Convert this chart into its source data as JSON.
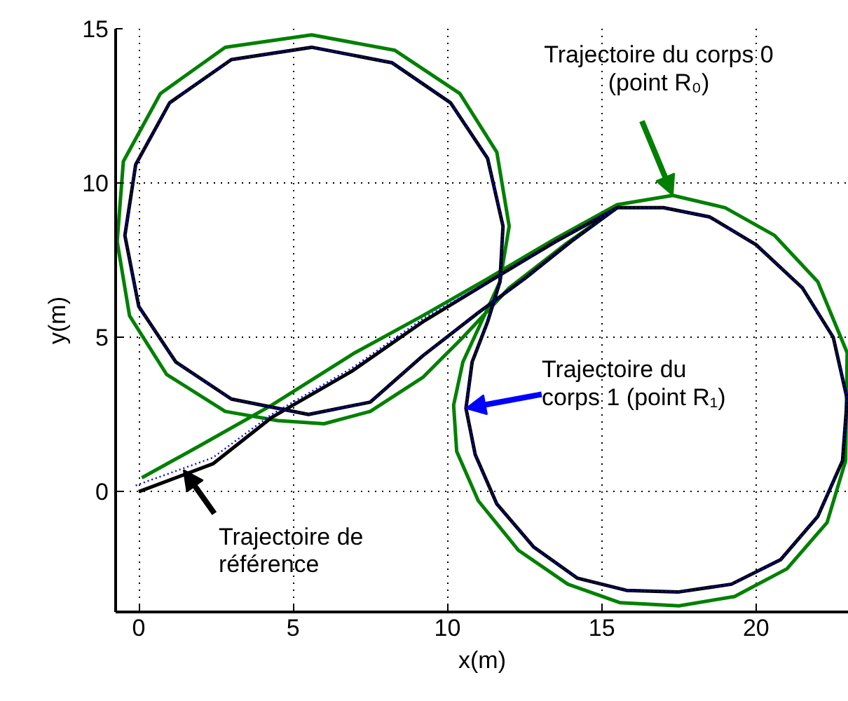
{
  "chart_data": {
    "type": "line",
    "xlabel": "x(m)",
    "ylabel": "y(m)",
    "xlim": [
      -0.75,
      23
    ],
    "ylim": [
      -3.9,
      15
    ],
    "xticks": [
      0,
      5,
      10,
      15,
      20
    ],
    "yticks": [
      0,
      5,
      10,
      15
    ],
    "grid": true,
    "series": [
      {
        "color": "#000000",
        "line_style": "solid",
        "x": [
          0,
          2.4,
          4.3,
          6.9,
          9.2,
          11.5,
          13.5,
          15.5,
          17,
          18.5,
          20,
          21.5,
          22.5,
          22.95,
          22.8,
          22,
          20.8,
          19.2,
          17.5,
          15.8,
          14.2,
          12.8,
          11.6,
          10.9,
          10.6,
          10.8,
          11.3,
          11.7,
          11.8,
          11.3,
          10.1,
          8.2,
          5.6,
          3,
          1,
          -0.1,
          -0.45,
          0,
          1.2,
          3,
          5.5,
          7.5,
          9.2,
          11,
          12.5,
          14,
          15.5
        ],
        "values": [
          0,
          0.9,
          2.4,
          3.9,
          5.5,
          6.9,
          8.1,
          9.2,
          9.2,
          8.9,
          8,
          6.6,
          5,
          3,
          1,
          -0.8,
          -2.2,
          -3,
          -3.25,
          -3.2,
          -2.8,
          -1.8,
          -0.4,
          1.2,
          2.7,
          4.2,
          5.5,
          6.8,
          8.6,
          10.8,
          12.6,
          13.9,
          14.4,
          14,
          12.6,
          10.6,
          8.3,
          6,
          4.2,
          3,
          2.5,
          2.9,
          4.4,
          5.8,
          6.9,
          8.1,
          9.2
        ]
      },
      {
        "color": "#008000",
        "line_style": "solid",
        "x": [
          0.1,
          2,
          4.3,
          7,
          9.2,
          11.3,
          13.5,
          15.5,
          17.3,
          19,
          20.6,
          22,
          22.95,
          22.9,
          22.3,
          21,
          19.3,
          17.5,
          15.6,
          13.9,
          12.3,
          11,
          10.3,
          10.2,
          10.5,
          11.1,
          11.7,
          12,
          11.6,
          10.4,
          8.3,
          5.6,
          2.8,
          0.7,
          -0.5,
          -0.7,
          -0.3,
          0.9,
          2.8,
          4.5,
          6,
          7.5,
          9.2,
          10.5,
          12,
          13.8,
          15.5
        ],
        "values": [
          0.45,
          1.5,
          2.8,
          4.5,
          5.7,
          6.9,
          8.2,
          9.3,
          9.6,
          9.2,
          8.3,
          6.8,
          4.5,
          1,
          -1,
          -2.5,
          -3.4,
          -3.7,
          -3.6,
          -3,
          -1.9,
          -0.3,
          1.3,
          2.8,
          4.2,
          5.5,
          6.8,
          8.6,
          11,
          12.9,
          14.3,
          14.8,
          14.4,
          12.9,
          10.7,
          8.1,
          5.7,
          3.8,
          2.6,
          2.3,
          2.2,
          2.6,
          3.7,
          5,
          6.6,
          8,
          9.2
        ]
      },
      {
        "color": "#0000ff",
        "line_style": "dotted",
        "x": [
          -0.1,
          2.4,
          4.3,
          6.9,
          9.2,
          11.5,
          13.5,
          15.5,
          17,
          18.5,
          20,
          21.5,
          22.5,
          22.95,
          22.8,
          22,
          20.8,
          19.2,
          17.5,
          15.8,
          14.2,
          12.8,
          11.6,
          10.9,
          10.6,
          10.8,
          11.3,
          11.7,
          11.8,
          11.3,
          10.1,
          8.2,
          5.6,
          3,
          1,
          -0.1,
          -0.45,
          0,
          1.2,
          3,
          5.5,
          7.5,
          9.2,
          11,
          12.5,
          14,
          15.5
        ],
        "values": [
          0.2,
          1.1,
          2.5,
          4.0,
          5.6,
          6.9,
          8.1,
          9.2,
          9.2,
          8.9,
          8,
          6.6,
          5,
          3,
          1,
          -0.8,
          -2.2,
          -3,
          -3.25,
          -3.2,
          -2.8,
          -1.8,
          -0.4,
          1.2,
          2.7,
          4.2,
          5.5,
          6.8,
          8.6,
          10.8,
          12.6,
          13.9,
          14.4,
          14,
          12.6,
          10.6,
          8.3,
          6,
          4.2,
          3,
          2.5,
          2.9,
          4.4,
          5.8,
          6.9,
          8.1,
          9.2
        ]
      }
    ],
    "annotations": [
      {
        "text": "Trajectoire de\nréférence",
        "x": 1.45,
        "y": 0.7
      },
      {
        "text": "Trajectoire du corps 0\n(point R₀)",
        "x": 17.3,
        "y": 9.6
      },
      {
        "text": "Trajectoire du\ncorps 1 (point R₁)",
        "x": 10.6,
        "y": 2.7
      }
    ]
  }
}
